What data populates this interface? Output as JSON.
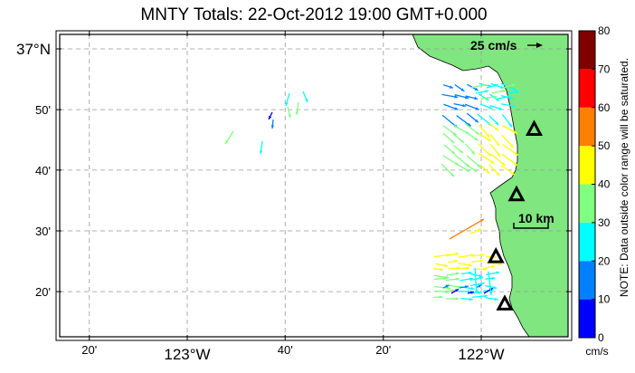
{
  "title": "MNTY Totals: 22-Oct-2012 19:00 GMT+0.000",
  "axes": {
    "lon_ticks": [
      {
        "label": "20'",
        "lon": -123.333,
        "major": false
      },
      {
        "label": "123°W",
        "lon": -123.0,
        "major": true
      },
      {
        "label": "40'",
        "lon": -122.667,
        "major": false
      },
      {
        "label": "20'",
        "lon": -122.333,
        "major": false
      },
      {
        "label": "122°W",
        "lon": -122.0,
        "major": true
      }
    ],
    "lat_ticks": [
      {
        "label": "37°N",
        "lat": 37.0,
        "major": true
      },
      {
        "label": "50'",
        "lat": 36.833,
        "major": false
      },
      {
        "label": "40'",
        "lat": 36.667,
        "major": false
      },
      {
        "label": "30'",
        "lat": 36.5,
        "major": false
      },
      {
        "label": "20'",
        "lat": 36.333,
        "major": false
      }
    ]
  },
  "scale_arrow": {
    "label": "25 cm/s"
  },
  "scale_bar": {
    "label": "10 km"
  },
  "colorbar": {
    "ticks": [
      "0",
      "10",
      "20",
      "30",
      "40",
      "50",
      "60",
      "70",
      "80"
    ],
    "unit": "cm/s",
    "colors": [
      "#0000ff",
      "#0080ff",
      "#00ffff",
      "#80ff80",
      "#ffff00",
      "#ff8000",
      "#ff0000",
      "#800000"
    ],
    "note": "NOTE: Data outside color range will be saturated."
  },
  "land_color": "#80e680",
  "stations": [
    {
      "name": "station-1",
      "lon": -121.82,
      "lat": 36.78
    },
    {
      "name": "station-2",
      "lon": -121.88,
      "lat": 36.6
    },
    {
      "name": "station-3",
      "lon": -121.95,
      "lat": 36.43
    },
    {
      "name": "station-4",
      "lon": -121.92,
      "lat": 36.3
    }
  ]
}
